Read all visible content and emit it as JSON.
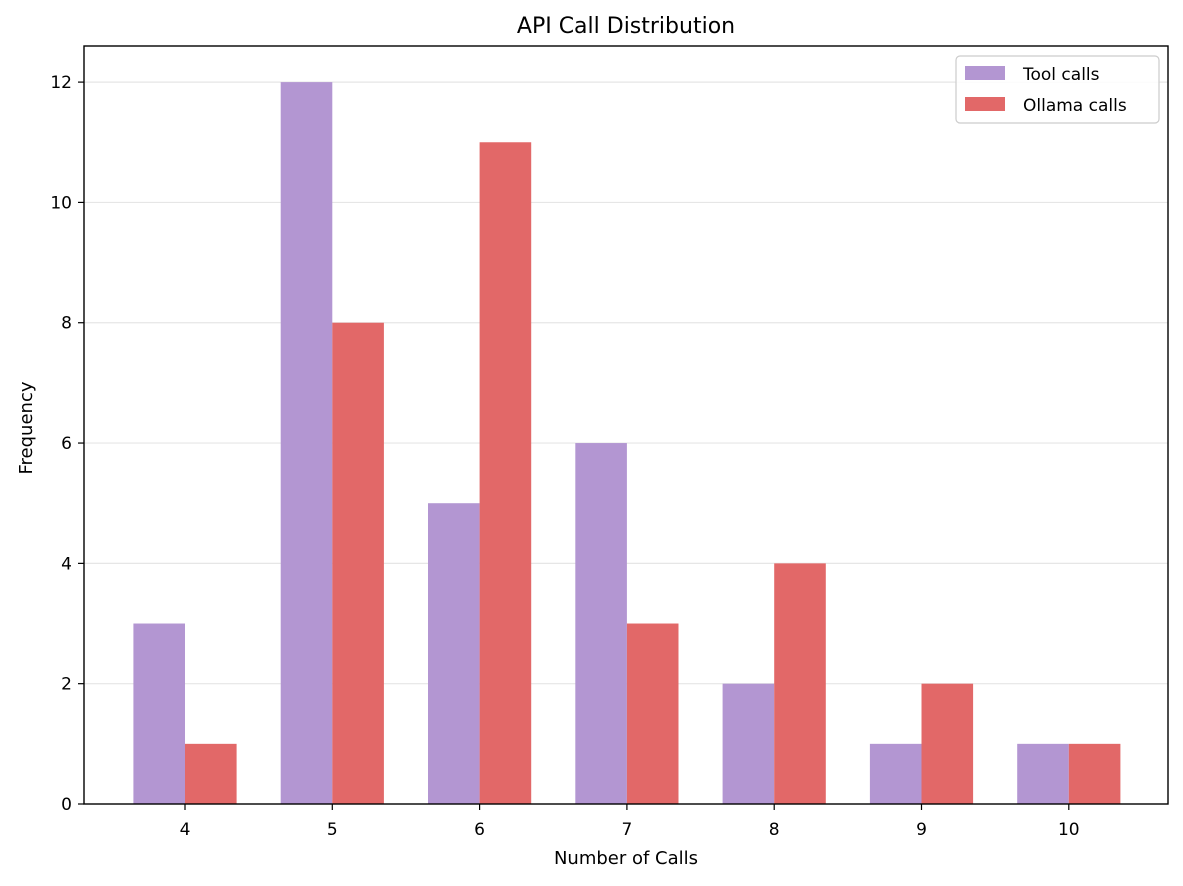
{
  "chart_data": {
    "type": "bar",
    "title": "API Call Distribution",
    "xlabel": "Number of Calls",
    "ylabel": "Frequency",
    "categories": [
      "4",
      "5",
      "6",
      "7",
      "8",
      "9",
      "10"
    ],
    "series": [
      {
        "name": "Tool calls",
        "color": "#b396d2",
        "values": [
          3,
          12,
          5,
          6,
          2,
          1,
          1
        ]
      },
      {
        "name": "Ollama calls",
        "color": "#e26868",
        "values": [
          1,
          8,
          11,
          3,
          4,
          2,
          1
        ]
      }
    ],
    "ylim": [
      0,
      12.6
    ],
    "yticks": [
      0,
      2,
      4,
      6,
      8,
      10,
      12
    ],
    "grid": "y",
    "grid_color": "#e6e6e6",
    "legend_position": "top-right"
  }
}
